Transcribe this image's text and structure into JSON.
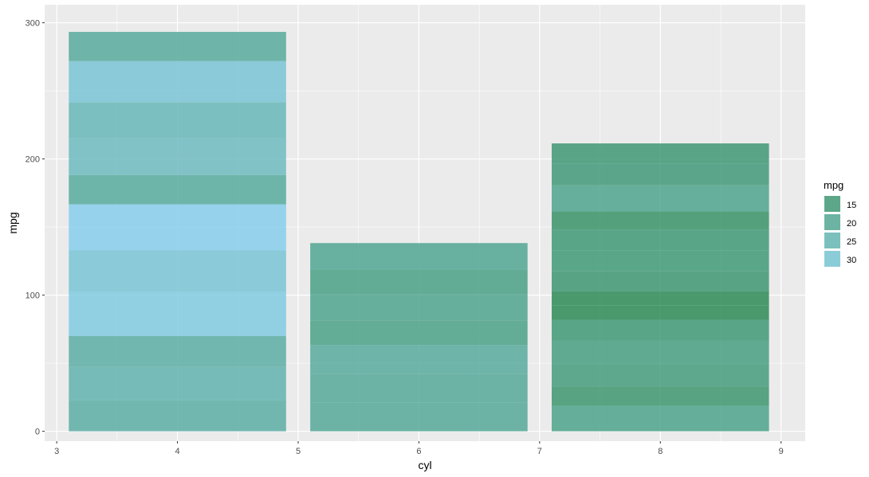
{
  "chart_data": {
    "type": "bar",
    "stacked": true,
    "title": "",
    "xlabel": "cyl",
    "ylabel": "mpg",
    "xlim": [
      2.9,
      9.2
    ],
    "ylim": [
      0,
      300
    ],
    "x_ticks": [
      3,
      4,
      5,
      6,
      7,
      8,
      9
    ],
    "y_ticks": [
      0,
      100,
      200,
      300
    ],
    "grid": true,
    "bar_width": 1.8,
    "stacks": [
      {
        "x": 4,
        "total": 293.3,
        "segments": [
          22.8,
          24.4,
          22.8,
          32.4,
          30.4,
          33.9,
          21.5,
          27.3,
          26.0,
          30.4,
          21.4
        ]
      },
      {
        "x": 6,
        "total": 138.2,
        "segments": [
          21.0,
          21.0,
          21.4,
          18.1,
          19.2,
          17.8,
          19.7
        ]
      },
      {
        "x": 8,
        "total": 211.4,
        "segments": [
          18.7,
          14.3,
          16.4,
          17.3,
          15.2,
          10.4,
          10.4,
          14.7,
          15.5,
          15.2,
          13.3,
          19.2,
          15.8,
          15.0
        ]
      }
    ],
    "legend": {
      "title": "mpg",
      "position": "right",
      "entries": [
        {
          "label": "15",
          "value": 15
        },
        {
          "label": "20",
          "value": 20
        },
        {
          "label": "25",
          "value": 25
        },
        {
          "label": "30",
          "value": 30
        }
      ]
    },
    "colors": {
      "low": "#2E8B57",
      "high": "#87CEEB",
      "panel": "#EBEBEB",
      "grid": "#FFFFFF"
    }
  }
}
